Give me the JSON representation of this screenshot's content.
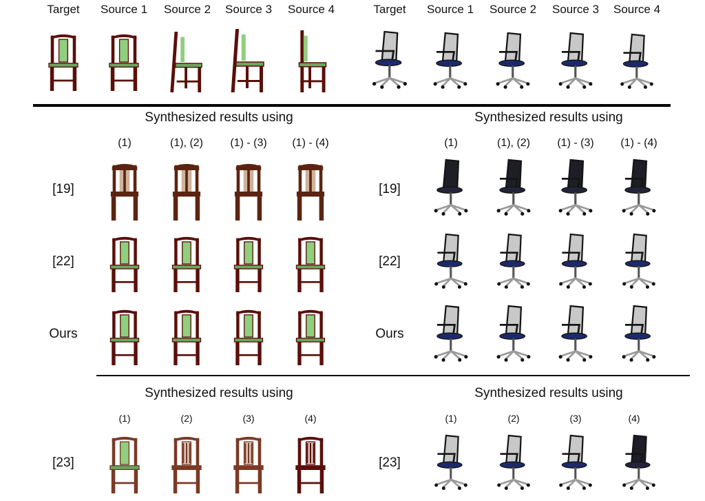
{
  "headers": {
    "left": [
      "Target",
      "Source 1",
      "Source 2",
      "Source 3",
      "Source 4"
    ],
    "right": [
      "Target",
      "Source 1",
      "Source 2",
      "Source 3",
      "Source 4"
    ]
  },
  "sections": {
    "synth_title_left_1": "Synthesized results using",
    "synth_title_right_1": "Synthesized results using",
    "synth_title_left_2": "Synthesized results using",
    "synth_title_right_2": "Synthesized results using"
  },
  "subsets_combined": [
    "(1)",
    "(1), (2)",
    "(1) - (3)",
    "(1) - (4)"
  ],
  "subsets_single": [
    "(1)",
    "(2)",
    "(3)",
    "(4)"
  ],
  "row_labels": {
    "ref19": "[19]",
    "ref22": "[22]",
    "ours": "Ours",
    "ref23": "[23]"
  },
  "colors": {
    "wood": "#5a0f0a",
    "wood_light": "#7a3a26",
    "green_back": "#8fcf7e",
    "green_seat": "#6aa860",
    "mesh": "#c8c8c8",
    "frame": "#151515",
    "blue_seat": "#1c2a6b",
    "metal": "#9a9a9a",
    "dark_shell": "#1e1e26"
  }
}
